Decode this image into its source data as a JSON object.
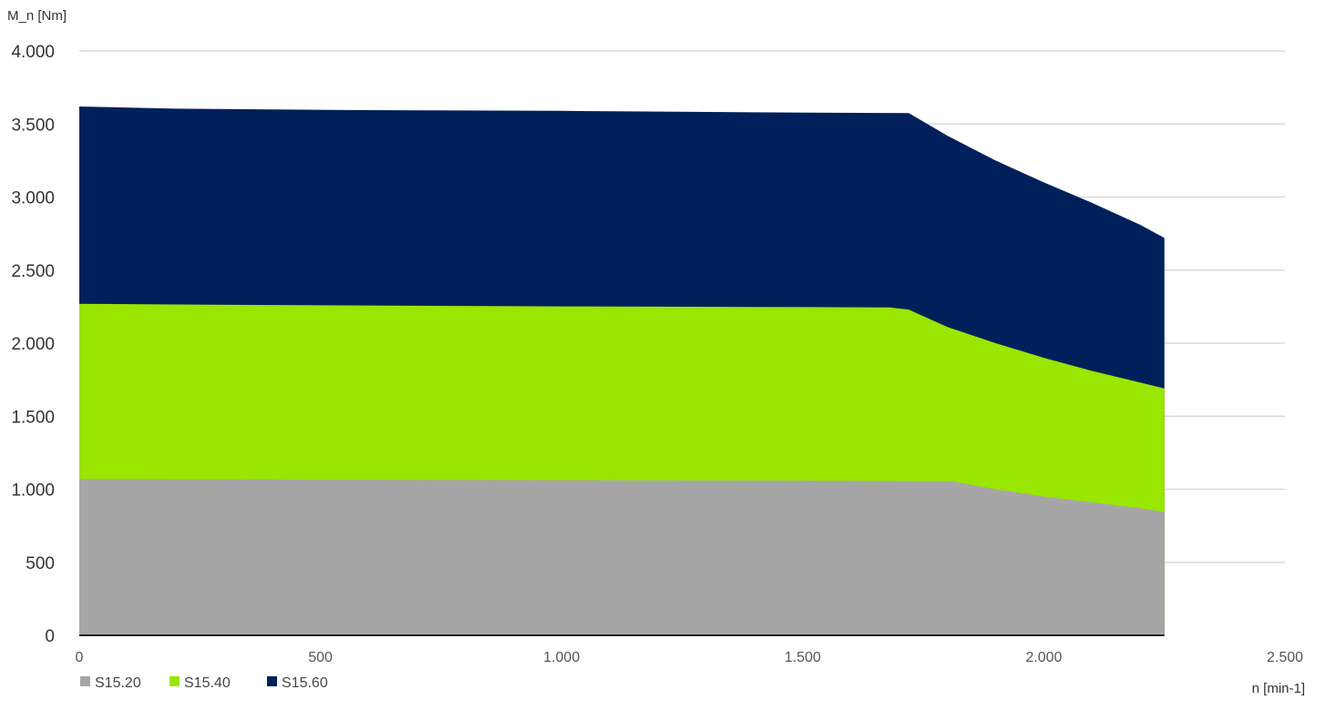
{
  "chart_data": {
    "type": "area",
    "stacked": false,
    "ylabel": "M_n [Nm]",
    "xlabel": "n [min-1]",
    "xlim": [
      0,
      2500
    ],
    "ylim": [
      0,
      4000
    ],
    "x_ticks": [
      {
        "value": 0,
        "label": "0"
      },
      {
        "value": 500,
        "label": "500"
      },
      {
        "value": 1000,
        "label": "1.000"
      },
      {
        "value": 1500,
        "label": "1.500"
      },
      {
        "value": 2000,
        "label": "2.000"
      },
      {
        "value": 2500,
        "label": "2.500"
      }
    ],
    "y_ticks": [
      {
        "value": 0,
        "label": "0"
      },
      {
        "value": 500,
        "label": "500"
      },
      {
        "value": 1000,
        "label": "1.000"
      },
      {
        "value": 1500,
        "label": "1.500"
      },
      {
        "value": 2000,
        "label": "2.000"
      },
      {
        "value": 2500,
        "label": "2.500"
      },
      {
        "value": 3000,
        "label": "3.000"
      },
      {
        "value": 3500,
        "label": "3.500"
      },
      {
        "value": 4000,
        "label": "4.000"
      }
    ],
    "grid": true,
    "legend_position": "bottom-left",
    "series": [
      {
        "name": "S15.60",
        "color": "#00205B",
        "points": [
          [
            0,
            3620
          ],
          [
            200,
            3605
          ],
          [
            600,
            3595
          ],
          [
            1000,
            3590
          ],
          [
            1400,
            3580
          ],
          [
            1720,
            3575
          ],
          [
            1800,
            3420
          ],
          [
            1900,
            3250
          ],
          [
            2000,
            3100
          ],
          [
            2100,
            2960
          ],
          [
            2200,
            2810
          ],
          [
            2250,
            2720
          ]
        ]
      },
      {
        "name": "S15.40",
        "color": "#99E600",
        "points": [
          [
            0,
            2270
          ],
          [
            200,
            2265
          ],
          [
            600,
            2258
          ],
          [
            1000,
            2252
          ],
          [
            1400,
            2248
          ],
          [
            1680,
            2245
          ],
          [
            1720,
            2230
          ],
          [
            1800,
            2110
          ],
          [
            1900,
            2000
          ],
          [
            2000,
            1900
          ],
          [
            2100,
            1810
          ],
          [
            2200,
            1730
          ],
          [
            2250,
            1690
          ]
        ]
      },
      {
        "name": "S15.20",
        "color": "#A6A6A6",
        "points": [
          [
            0,
            1070
          ],
          [
            500,
            1065
          ],
          [
            1000,
            1062
          ],
          [
            1500,
            1060
          ],
          [
            1810,
            1055
          ],
          [
            1900,
            1000
          ],
          [
            2000,
            950
          ],
          [
            2100,
            910
          ],
          [
            2200,
            870
          ],
          [
            2250,
            845
          ]
        ]
      }
    ],
    "legend": [
      {
        "name": "S15.20",
        "color": "#A6A6A6"
      },
      {
        "name": "S15.40",
        "color": "#99E600"
      },
      {
        "name": "S15.60",
        "color": "#00205B"
      }
    ]
  }
}
